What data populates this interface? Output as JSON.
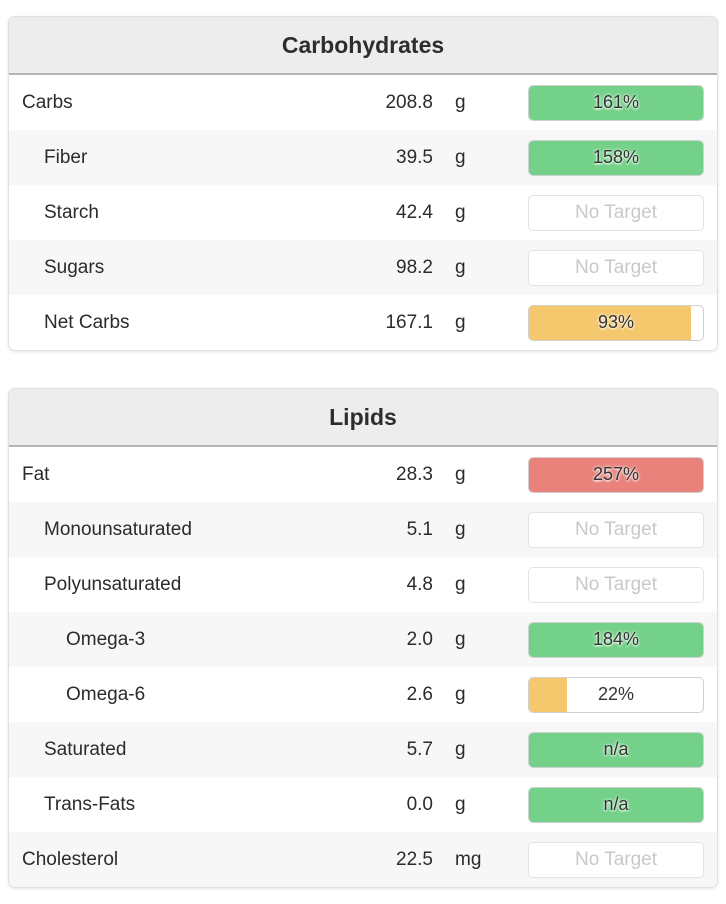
{
  "colors": {
    "green": "#74d189",
    "yellow": "#f5c86d",
    "red": "#e8827a",
    "header_bg": "#ededed",
    "row_alt_bg": "#f7f7f7",
    "no_target_text": "#c9c9c9",
    "text": "#2b2b2b"
  },
  "panels": [
    {
      "title": "Carbohydrates",
      "rows": [
        {
          "label": "Carbs",
          "value": "208.8",
          "unit": "g",
          "indent": 0,
          "bar": {
            "style": "green",
            "fill_pct": 100,
            "label": "161%"
          }
        },
        {
          "label": "Fiber",
          "value": "39.5",
          "unit": "g",
          "indent": 1,
          "bar": {
            "style": "green",
            "fill_pct": 100,
            "label": "158%"
          }
        },
        {
          "label": "Starch",
          "value": "42.4",
          "unit": "g",
          "indent": 1,
          "bar": {
            "style": "none",
            "fill_pct": 0,
            "label": "No Target"
          }
        },
        {
          "label": "Sugars",
          "value": "98.2",
          "unit": "g",
          "indent": 1,
          "bar": {
            "style": "none",
            "fill_pct": 0,
            "label": "No Target"
          }
        },
        {
          "label": "Net Carbs",
          "value": "167.1",
          "unit": "g",
          "indent": 1,
          "bar": {
            "style": "yellow",
            "fill_pct": 93,
            "label": "93%"
          }
        }
      ]
    },
    {
      "title": "Lipids",
      "rows": [
        {
          "label": "Fat",
          "value": "28.3",
          "unit": "g",
          "indent": 0,
          "bar": {
            "style": "red",
            "fill_pct": 100,
            "label": "257%"
          }
        },
        {
          "label": "Monounsaturated",
          "value": "5.1",
          "unit": "g",
          "indent": 1,
          "bar": {
            "style": "none",
            "fill_pct": 0,
            "label": "No Target"
          }
        },
        {
          "label": "Polyunsaturated",
          "value": "4.8",
          "unit": "g",
          "indent": 1,
          "bar": {
            "style": "none",
            "fill_pct": 0,
            "label": "No Target"
          }
        },
        {
          "label": "Omega-3",
          "value": "2.0",
          "unit": "g",
          "indent": 2,
          "bar": {
            "style": "green",
            "fill_pct": 100,
            "label": "184%"
          }
        },
        {
          "label": "Omega-6",
          "value": "2.6",
          "unit": "g",
          "indent": 2,
          "bar": {
            "style": "yellow",
            "fill_pct": 22,
            "label": "22%"
          }
        },
        {
          "label": "Saturated",
          "value": "5.7",
          "unit": "g",
          "indent": 1,
          "bar": {
            "style": "green",
            "fill_pct": 100,
            "label": "n/a"
          }
        },
        {
          "label": "Trans-Fats",
          "value": "0.0",
          "unit": "g",
          "indent": 1,
          "bar": {
            "style": "green",
            "fill_pct": 100,
            "label": "n/a"
          }
        },
        {
          "label": "Cholesterol",
          "value": "22.5",
          "unit": "mg",
          "indent": 0,
          "bar": {
            "style": "none",
            "fill_pct": 0,
            "label": "No Target"
          }
        }
      ]
    }
  ]
}
